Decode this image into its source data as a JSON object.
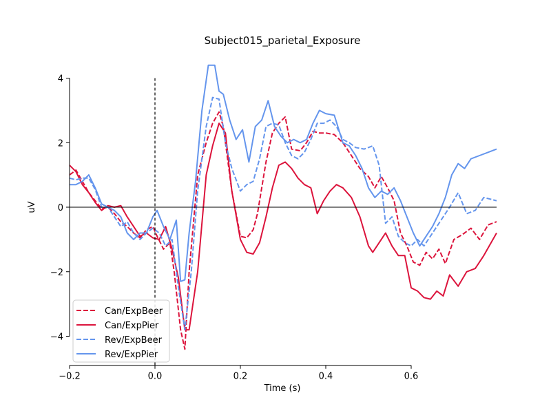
{
  "chart_data": {
    "type": "line",
    "title": "Subject015_parietal_Exposure",
    "xlabel": "Time (s)",
    "ylabel": "uV",
    "xlim": [
      -0.2,
      0.8
    ],
    "ylim": [
      -4.9,
      4.9
    ],
    "xticks": [
      -0.2,
      0.0,
      0.2,
      0.4,
      0.6
    ],
    "xtick_labels": [
      "−0.2",
      "0.0",
      "0.2",
      "0.4",
      "0.6"
    ],
    "yticks": [
      -4,
      -2,
      0,
      2,
      4
    ],
    "ytick_labels": [
      "−4",
      "−2",
      "0",
      "2",
      "4"
    ],
    "event_marker_x": 0.0,
    "zero_line": true,
    "grid": false,
    "legend_position": "lower-left",
    "series": [
      {
        "name": "Can/ExpBeer",
        "color": "#dc143c",
        "dash": "dashed",
        "x": [
          -0.2,
          -0.185,
          -0.17,
          -0.155,
          -0.14,
          -0.125,
          -0.11,
          -0.095,
          -0.08,
          -0.065,
          -0.05,
          -0.035,
          -0.02,
          -0.005,
          0.005,
          0.02,
          0.035,
          0.045,
          0.06,
          0.07,
          0.08,
          0.1,
          0.12,
          0.135,
          0.15,
          0.16,
          0.18,
          0.2,
          0.215,
          0.23,
          0.24,
          0.26,
          0.275,
          0.29,
          0.305,
          0.32,
          0.34,
          0.355,
          0.37,
          0.385,
          0.4,
          0.42,
          0.44,
          0.46,
          0.48,
          0.5,
          0.515,
          0.53,
          0.545,
          0.56,
          0.575,
          0.59,
          0.605,
          0.62,
          0.635,
          0.65,
          0.665,
          0.68,
          0.7,
          0.72,
          0.74,
          0.76,
          0.78,
          0.8
        ],
        "y": [
          1.0,
          1.15,
          0.8,
          0.45,
          0.2,
          -0.05,
          0.0,
          -0.2,
          -0.45,
          -0.6,
          -0.8,
          -0.95,
          -0.7,
          -0.6,
          -0.9,
          -1.3,
          -1.1,
          -2.0,
          -3.8,
          -4.4,
          -2.0,
          1.0,
          2.0,
          2.6,
          2.95,
          2.5,
          0.5,
          -0.9,
          -0.95,
          -0.7,
          -0.2,
          1.4,
          2.3,
          2.6,
          2.8,
          1.8,
          1.75,
          2.0,
          2.35,
          2.3,
          2.3,
          2.25,
          2.0,
          1.6,
          1.2,
          0.95,
          0.6,
          0.95,
          0.6,
          0.2,
          -0.8,
          -1.2,
          -1.7,
          -1.8,
          -1.4,
          -1.6,
          -1.3,
          -1.75,
          -1.0,
          -0.85,
          -0.65,
          -1.0,
          -0.55,
          -0.45
        ]
      },
      {
        "name": "Can/ExpPier",
        "color": "#dc143c",
        "dash": "solid",
        "x": [
          -0.2,
          -0.185,
          -0.17,
          -0.155,
          -0.14,
          -0.125,
          -0.11,
          -0.095,
          -0.08,
          -0.065,
          -0.05,
          -0.035,
          -0.02,
          -0.005,
          0.01,
          0.025,
          0.04,
          0.055,
          0.07,
          0.08,
          0.1,
          0.12,
          0.135,
          0.15,
          0.165,
          0.18,
          0.2,
          0.215,
          0.23,
          0.245,
          0.26,
          0.275,
          0.29,
          0.305,
          0.32,
          0.335,
          0.35,
          0.365,
          0.38,
          0.395,
          0.41,
          0.425,
          0.44,
          0.46,
          0.48,
          0.5,
          0.51,
          0.525,
          0.54,
          0.555,
          0.57,
          0.585,
          0.6,
          0.615,
          0.63,
          0.645,
          0.66,
          0.675,
          0.69,
          0.71,
          0.73,
          0.75,
          0.77,
          0.8
        ],
        "y": [
          1.3,
          1.1,
          0.7,
          0.45,
          0.15,
          -0.1,
          0.05,
          0.0,
          0.05,
          -0.3,
          -0.6,
          -0.9,
          -0.8,
          -0.95,
          -1.0,
          -0.6,
          -1.3,
          -2.2,
          -3.8,
          -3.8,
          -2.0,
          1.0,
          1.9,
          2.6,
          2.3,
          0.5,
          -1.0,
          -1.4,
          -1.45,
          -1.1,
          -0.3,
          0.6,
          1.3,
          1.4,
          1.2,
          0.9,
          0.7,
          0.6,
          -0.2,
          0.2,
          0.5,
          0.7,
          0.6,
          0.3,
          -0.3,
          -1.2,
          -1.4,
          -1.1,
          -0.8,
          -1.2,
          -1.5,
          -1.5,
          -2.5,
          -2.6,
          -2.8,
          -2.85,
          -2.6,
          -2.75,
          -2.1,
          -2.45,
          -2.0,
          -1.9,
          -1.5,
          -0.8
        ]
      },
      {
        "name": "Rev/ExpBeer",
        "color": "#6495ed",
        "dash": "dashed",
        "x": [
          -0.2,
          -0.185,
          -0.17,
          -0.155,
          -0.14,
          -0.125,
          -0.11,
          -0.095,
          -0.08,
          -0.065,
          -0.05,
          -0.035,
          -0.02,
          -0.005,
          0.01,
          0.025,
          0.04,
          0.055,
          0.07,
          0.085,
          0.1,
          0.12,
          0.135,
          0.15,
          0.165,
          0.18,
          0.2,
          0.215,
          0.23,
          0.245,
          0.26,
          0.275,
          0.29,
          0.305,
          0.32,
          0.335,
          0.35,
          0.365,
          0.38,
          0.395,
          0.41,
          0.425,
          0.44,
          0.455,
          0.47,
          0.49,
          0.51,
          0.525,
          0.54,
          0.555,
          0.57,
          0.585,
          0.6,
          0.615,
          0.63,
          0.645,
          0.66,
          0.675,
          0.69,
          0.71,
          0.73,
          0.75,
          0.77,
          0.8
        ],
        "y": [
          0.9,
          0.85,
          0.9,
          0.9,
          0.55,
          0.0,
          0.0,
          -0.3,
          -0.6,
          -0.45,
          -0.8,
          -1.0,
          -0.8,
          -0.65,
          -0.8,
          -1.2,
          -1.0,
          -2.5,
          -3.8,
          -2.0,
          0.5,
          2.5,
          3.4,
          3.35,
          2.0,
          1.2,
          0.5,
          0.7,
          0.8,
          1.5,
          2.5,
          2.6,
          2.55,
          2.0,
          1.6,
          1.5,
          1.7,
          2.1,
          2.6,
          2.6,
          2.7,
          2.5,
          2.1,
          2.0,
          1.85,
          1.8,
          1.9,
          1.3,
          -0.5,
          -0.3,
          -0.9,
          -1.1,
          -1.2,
          -1.0,
          -1.2,
          -0.9,
          -0.6,
          -0.3,
          0.0,
          0.45,
          -0.2,
          -0.1,
          0.3,
          0.2
        ]
      },
      {
        "name": "Rev/ExpPier",
        "color": "#6495ed",
        "dash": "solid",
        "x": [
          -0.2,
          -0.185,
          -0.17,
          -0.155,
          -0.14,
          -0.125,
          -0.11,
          -0.095,
          -0.08,
          -0.065,
          -0.05,
          -0.035,
          -0.02,
          -0.005,
          0.005,
          0.02,
          0.035,
          0.05,
          0.06,
          0.07,
          0.08,
          0.095,
          0.11,
          0.125,
          0.14,
          0.15,
          0.16,
          0.175,
          0.19,
          0.205,
          0.22,
          0.235,
          0.25,
          0.265,
          0.28,
          0.295,
          0.31,
          0.325,
          0.34,
          0.355,
          0.37,
          0.385,
          0.4,
          0.42,
          0.44,
          0.455,
          0.47,
          0.485,
          0.5,
          0.515,
          0.53,
          0.545,
          0.56,
          0.575,
          0.59,
          0.605,
          0.62,
          0.635,
          0.65,
          0.665,
          0.68,
          0.695,
          0.71,
          0.725,
          0.74,
          0.76,
          0.78,
          0.8
        ],
        "y": [
          0.7,
          0.7,
          0.8,
          1.0,
          0.6,
          0.1,
          0.0,
          -0.1,
          -0.3,
          -0.8,
          -1.0,
          -0.8,
          -0.8,
          -0.3,
          -0.1,
          -0.6,
          -1.0,
          -0.4,
          -2.3,
          -2.25,
          -0.8,
          0.8,
          3.0,
          4.4,
          4.4,
          3.6,
          3.5,
          2.7,
          2.1,
          2.4,
          1.4,
          2.5,
          2.7,
          3.3,
          2.5,
          2.2,
          2.0,
          2.1,
          2.0,
          2.1,
          2.6,
          3.0,
          2.9,
          2.85,
          2.0,
          1.9,
          1.6,
          1.2,
          0.6,
          0.3,
          0.5,
          0.4,
          0.6,
          0.2,
          -0.3,
          -0.8,
          -1.2,
          -0.9,
          -0.6,
          -0.2,
          0.3,
          1.0,
          1.35,
          1.2,
          1.5,
          1.6,
          1.7,
          1.8
        ]
      }
    ]
  }
}
